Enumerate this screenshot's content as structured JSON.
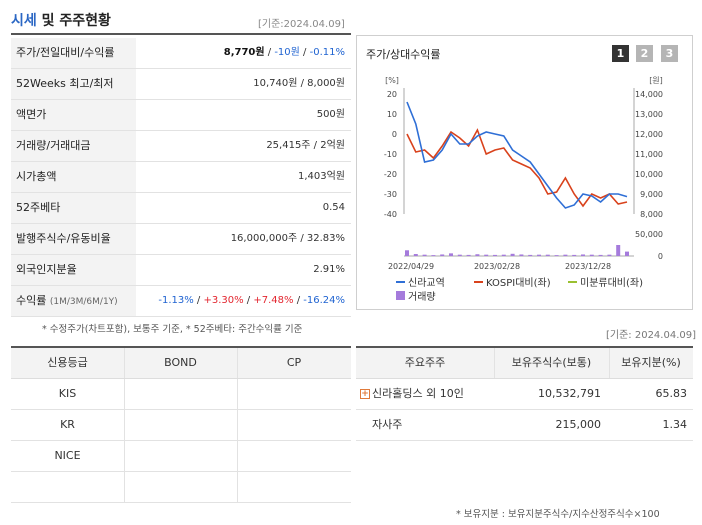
{
  "header": {
    "title_blue": "시세",
    "title_rest": " 및 주주현황",
    "date": "[기준:2024.04.09]"
  },
  "price_table": {
    "rows": [
      {
        "label": "주가/전일대비/수익률",
        "value_main": "8,770원",
        "value_sep1": " / ",
        "value_change": "-10원",
        "value_sep2": " / ",
        "value_pct": "-0.11%"
      },
      {
        "label": "52Weeks 최고/최저",
        "value": "10,740원 / 8,000원"
      },
      {
        "label": "액면가",
        "value": "500원"
      },
      {
        "label": "거래량/거래대금",
        "value": "25,415주 / 2억원"
      },
      {
        "label": "시가총액",
        "value": "1,403억원"
      },
      {
        "label": "52주베타",
        "value": "0.54"
      },
      {
        "label": "발행주식수/유동비율",
        "value": "16,000,000주 / 32.83%"
      },
      {
        "label": "외국인지분율",
        "value": "2.91%"
      },
      {
        "label": "수익률",
        "label_sub": "(1M/3M/6M/1Y)",
        "r1": "-1.13%",
        "r2": "+3.30%",
        "r3": "+7.48%",
        "r4": "-16.24%",
        "sep": " / "
      }
    ],
    "note": "* 수정주가(차트포함), 보통주 기준, * 52주베타: 주간수익률 기준"
  },
  "chart_panel": {
    "title": "주가/상대수익률",
    "buttons": [
      "1",
      "2",
      "3"
    ],
    "colors": {
      "stock": "#2f6fd6",
      "kospi": "#d9421c",
      "unadj": "#9ac031",
      "volume": "#a57bdc",
      "btn_active": "#333333",
      "btn_inactive": "#b5b5b5"
    }
  },
  "chart_data": {
    "type": "line",
    "left_axis": {
      "unit": "[%]",
      "ticks": [
        "20",
        "10",
        "0",
        "-10",
        "-20",
        "-30",
        "-40"
      ],
      "range": [
        -40,
        20
      ]
    },
    "right_axis": {
      "unit": "[원]",
      "ticks": [
        "14,000",
        "13,000",
        "12,000",
        "11,000",
        "10,000",
        "9,000",
        "8,000"
      ],
      "range": [
        8000,
        14000
      ]
    },
    "volume_axis": {
      "ticks": [
        "50,000",
        "0"
      ],
      "range": [
        0,
        50000
      ]
    },
    "x_ticks": [
      "2022/04/29",
      "2023/02/28",
      "2023/12/28"
    ],
    "series": [
      {
        "name": "신라교역",
        "axis": "right",
        "values": [
          13600,
          12500,
          10600,
          10700,
          11200,
          12000,
          11500,
          11500,
          11900,
          12100,
          12000,
          11900,
          11200,
          10900,
          10600,
          10000,
          9400,
          8800,
          8300,
          8450,
          9000,
          8900,
          8600,
          9000,
          9000,
          8870
        ]
      },
      {
        "name": "KOSPI대비(좌)",
        "axis": "left",
        "values": [
          0,
          -9,
          -8,
          -12,
          -6,
          1,
          -2,
          -6,
          2,
          -10,
          -8,
          -7,
          -13,
          -15,
          -17,
          -22,
          -30,
          -29,
          -22,
          -30,
          -36,
          -30,
          -32,
          -30,
          -35,
          -34
        ]
      },
      {
        "name": "미분류대비(좌)",
        "axis": "left",
        "values": []
      },
      {
        "name": "거래량",
        "type": "bar",
        "values": [
          13000,
          4500,
          3000,
          2000,
          3500,
          6000,
          3000,
          2500,
          4000,
          3000,
          2500,
          3000,
          5000,
          3500,
          2500,
          3000,
          3000,
          2000,
          3000,
          2500,
          3500,
          3000,
          2500,
          3000,
          25000,
          10000
        ]
      }
    ]
  },
  "credit_table": {
    "headers": [
      "신용등급",
      "BOND",
      "CP"
    ],
    "rows": [
      [
        "KIS",
        "",
        ""
      ],
      [
        "KR",
        "",
        ""
      ],
      [
        "NICE",
        "",
        ""
      ],
      [
        "",
        "",
        ""
      ]
    ]
  },
  "shareholders": {
    "date": "[기준: 2024.04.09]",
    "headers": [
      "주요주주",
      "보유주식수(보통)",
      "보유지분(%)"
    ],
    "rows": [
      {
        "name": "신라홀딩스 외 10인",
        "shares": "10,532,791",
        "pct": "65.83",
        "expandable": true
      },
      {
        "name": "자사주",
        "shares": "215,000",
        "pct": "1.34",
        "expandable": false
      }
    ],
    "note": "* 보유지분 : 보유지분주식수/지수산정주식수×100"
  }
}
